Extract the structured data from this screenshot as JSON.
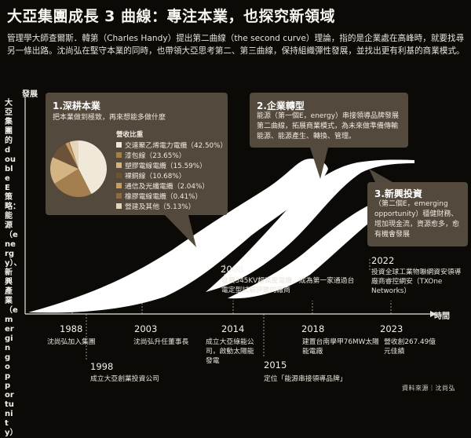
{
  "title": "大亞集團成長 3 曲線：專注本業，也探究新領域",
  "intro": "管理學大師查爾斯．韓第（Charles Handy）提出第二曲線（the second curve）理論，指的是企業處在高峰時，就要找尋另一條出路。沈尚弘在堅守本業的同時，也帶領大亞思考第二、第三曲線，保持組織彈性發展，並找出更有利基的商業模式。",
  "vertical_label": "大亞集團的double E策略：能源（energy）、新興產業（emerging opportunity）",
  "y_axis_label": "發展",
  "x_axis_label": "時間",
  "boxes": {
    "core": {
      "title": "1.深耕本業",
      "desc": "把本業做到極致，再來想能多做什麼"
    },
    "transform": {
      "title": "2.企業轉型",
      "desc": "能源（第一個E，energy）串接領導品牌發展第二曲線，拓展商業模式，為未來做準備傳輸能源、能源產生、轉換、管理。"
    },
    "emerging": {
      "title": "3.新興投資",
      "desc": "（第二個E，emerging opportunity）穩健財務、增加現金流，資源愈多，愈有機會發展"
    }
  },
  "revenue": {
    "title": "營收比重",
    "colors": [
      "#f0e8d8",
      "#a37e4e",
      "#d3b482",
      "#6b5238",
      "#c79d62",
      "#8b6a45",
      "#e6d6b9"
    ],
    "items": [
      {
        "label": "交連聚乙烯電力電纜（42.50%）",
        "value": 42.5
      },
      {
        "label": "漆包線（23.65%）",
        "value": 23.65
      },
      {
        "label": "塑膠電線電纜（15.59%）",
        "value": 15.59
      },
      {
        "label": "裸銅線（10.68%）",
        "value": 10.68
      },
      {
        "label": "通信及光纖電纜（2.04%）",
        "value": 2.04
      },
      {
        "label": "橡膠電線電纜（0.41%）",
        "value": 0.41
      },
      {
        "label": "營建及其他（5.13%）",
        "value": 5.13
      }
    ]
  },
  "milestone_2008": {
    "year": "2008",
    "text": "發展345KV超高壓電纜，成為第一家通過台電定型試驗評鑑的廠商"
  },
  "milestone_2022": {
    "year": "2022",
    "text": "投資全球工業物聯網資安領導廠商睿控網安（TXOne Networks）"
  },
  "timeline": [
    {
      "year": "1988",
      "text": "沈尚弘加入集團"
    },
    {
      "year": "1998",
      "text": "成立大亞創業投資公司"
    },
    {
      "year": "2003",
      "text": "沈尚弘升任董事長"
    },
    {
      "year": "2014",
      "text": "成立大亞綠能公司，啟動太陽能發電"
    },
    {
      "year": "2015",
      "text": "定位「能源串接領導品牌」"
    },
    {
      "year": "2018",
      "text": "建置台南學甲76MW太陽能電廠"
    },
    {
      "year": "2023",
      "text": "營收創267.49億元佳績"
    }
  ],
  "source": "資料來源｜沈尚弘"
}
